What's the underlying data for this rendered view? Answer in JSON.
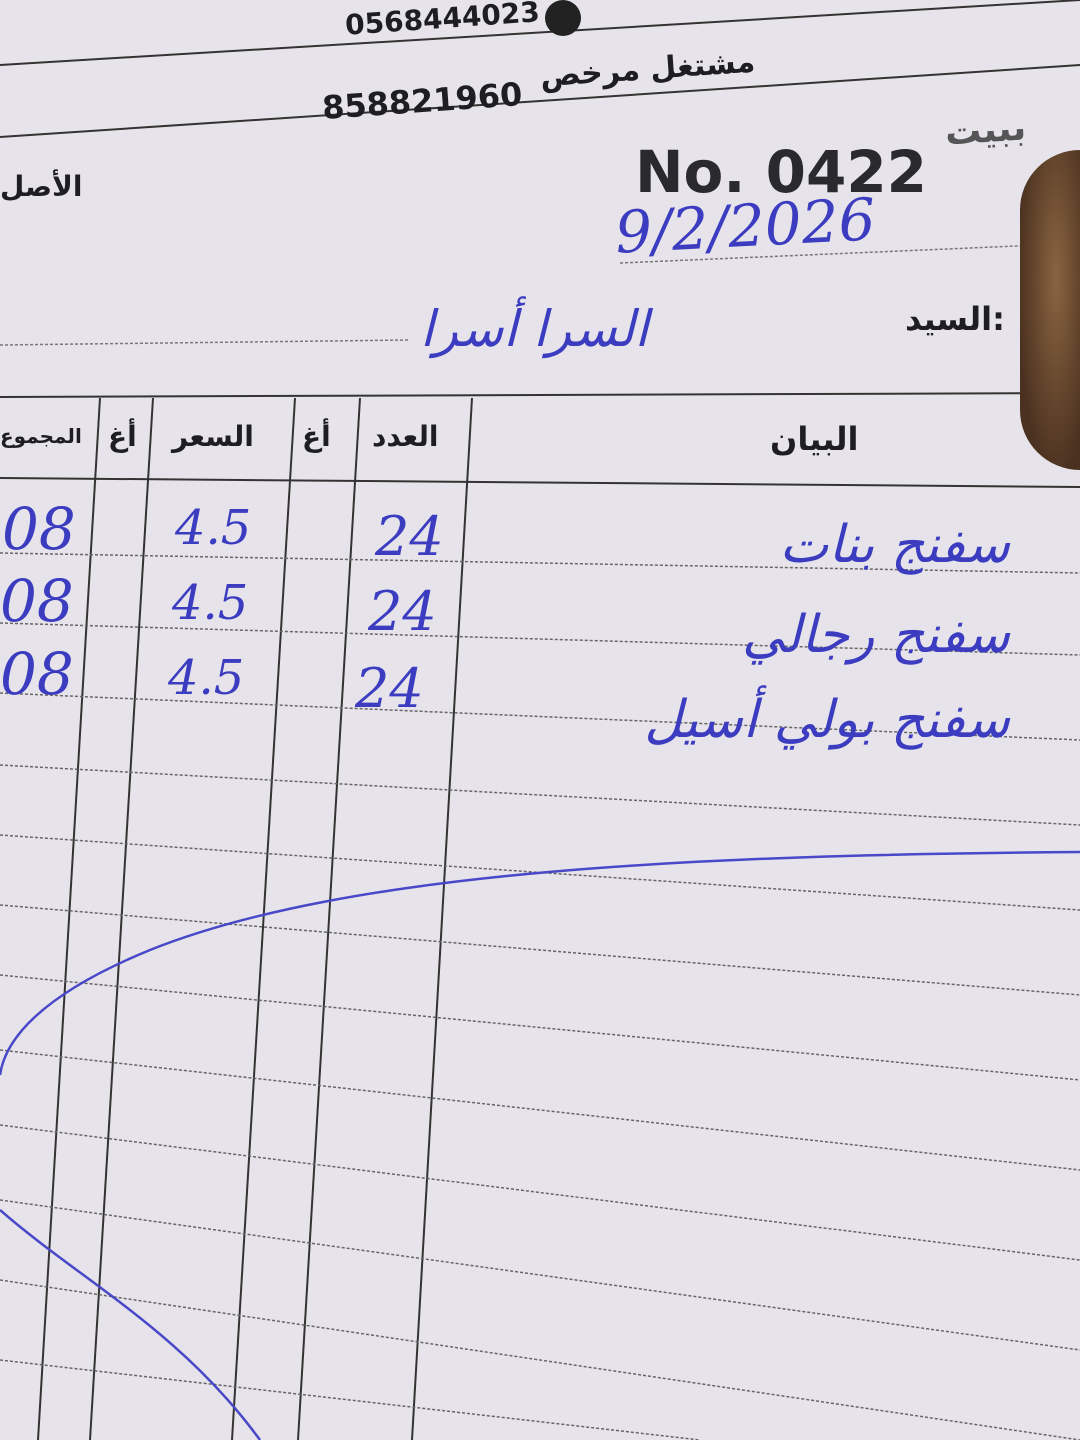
{
  "header": {
    "phone": "0568444023",
    "license_label": "مشتغل مرخص",
    "license_number": "858821960",
    "invoice_number": "No. 0422",
    "date": "9/2/2026",
    "customer_label": "السيد:",
    "customer_name": "السرا أسرا",
    "partial_left_label": "الأصل",
    "partial_right_label": "ببيت"
  },
  "table": {
    "columns": [
      "البيان",
      "العدد",
      "أغ",
      "السعر",
      "أغ",
      "المجموع"
    ],
    "rows": [
      {
        "description": "سفنج بنات",
        "quantity": "24",
        "price": "4.5",
        "total": "08"
      },
      {
        "description": "سفنج رجالي",
        "quantity": "24",
        "price": "4.5",
        "total": "08"
      },
      {
        "description": "سفنج بولي أسيل",
        "quantity": "24",
        "price": "4.5",
        "total": "08"
      }
    ]
  },
  "colors": {
    "paper": "#e6e4ea",
    "ink": "#3b3cc0",
    "print": "#1e1e22"
  }
}
